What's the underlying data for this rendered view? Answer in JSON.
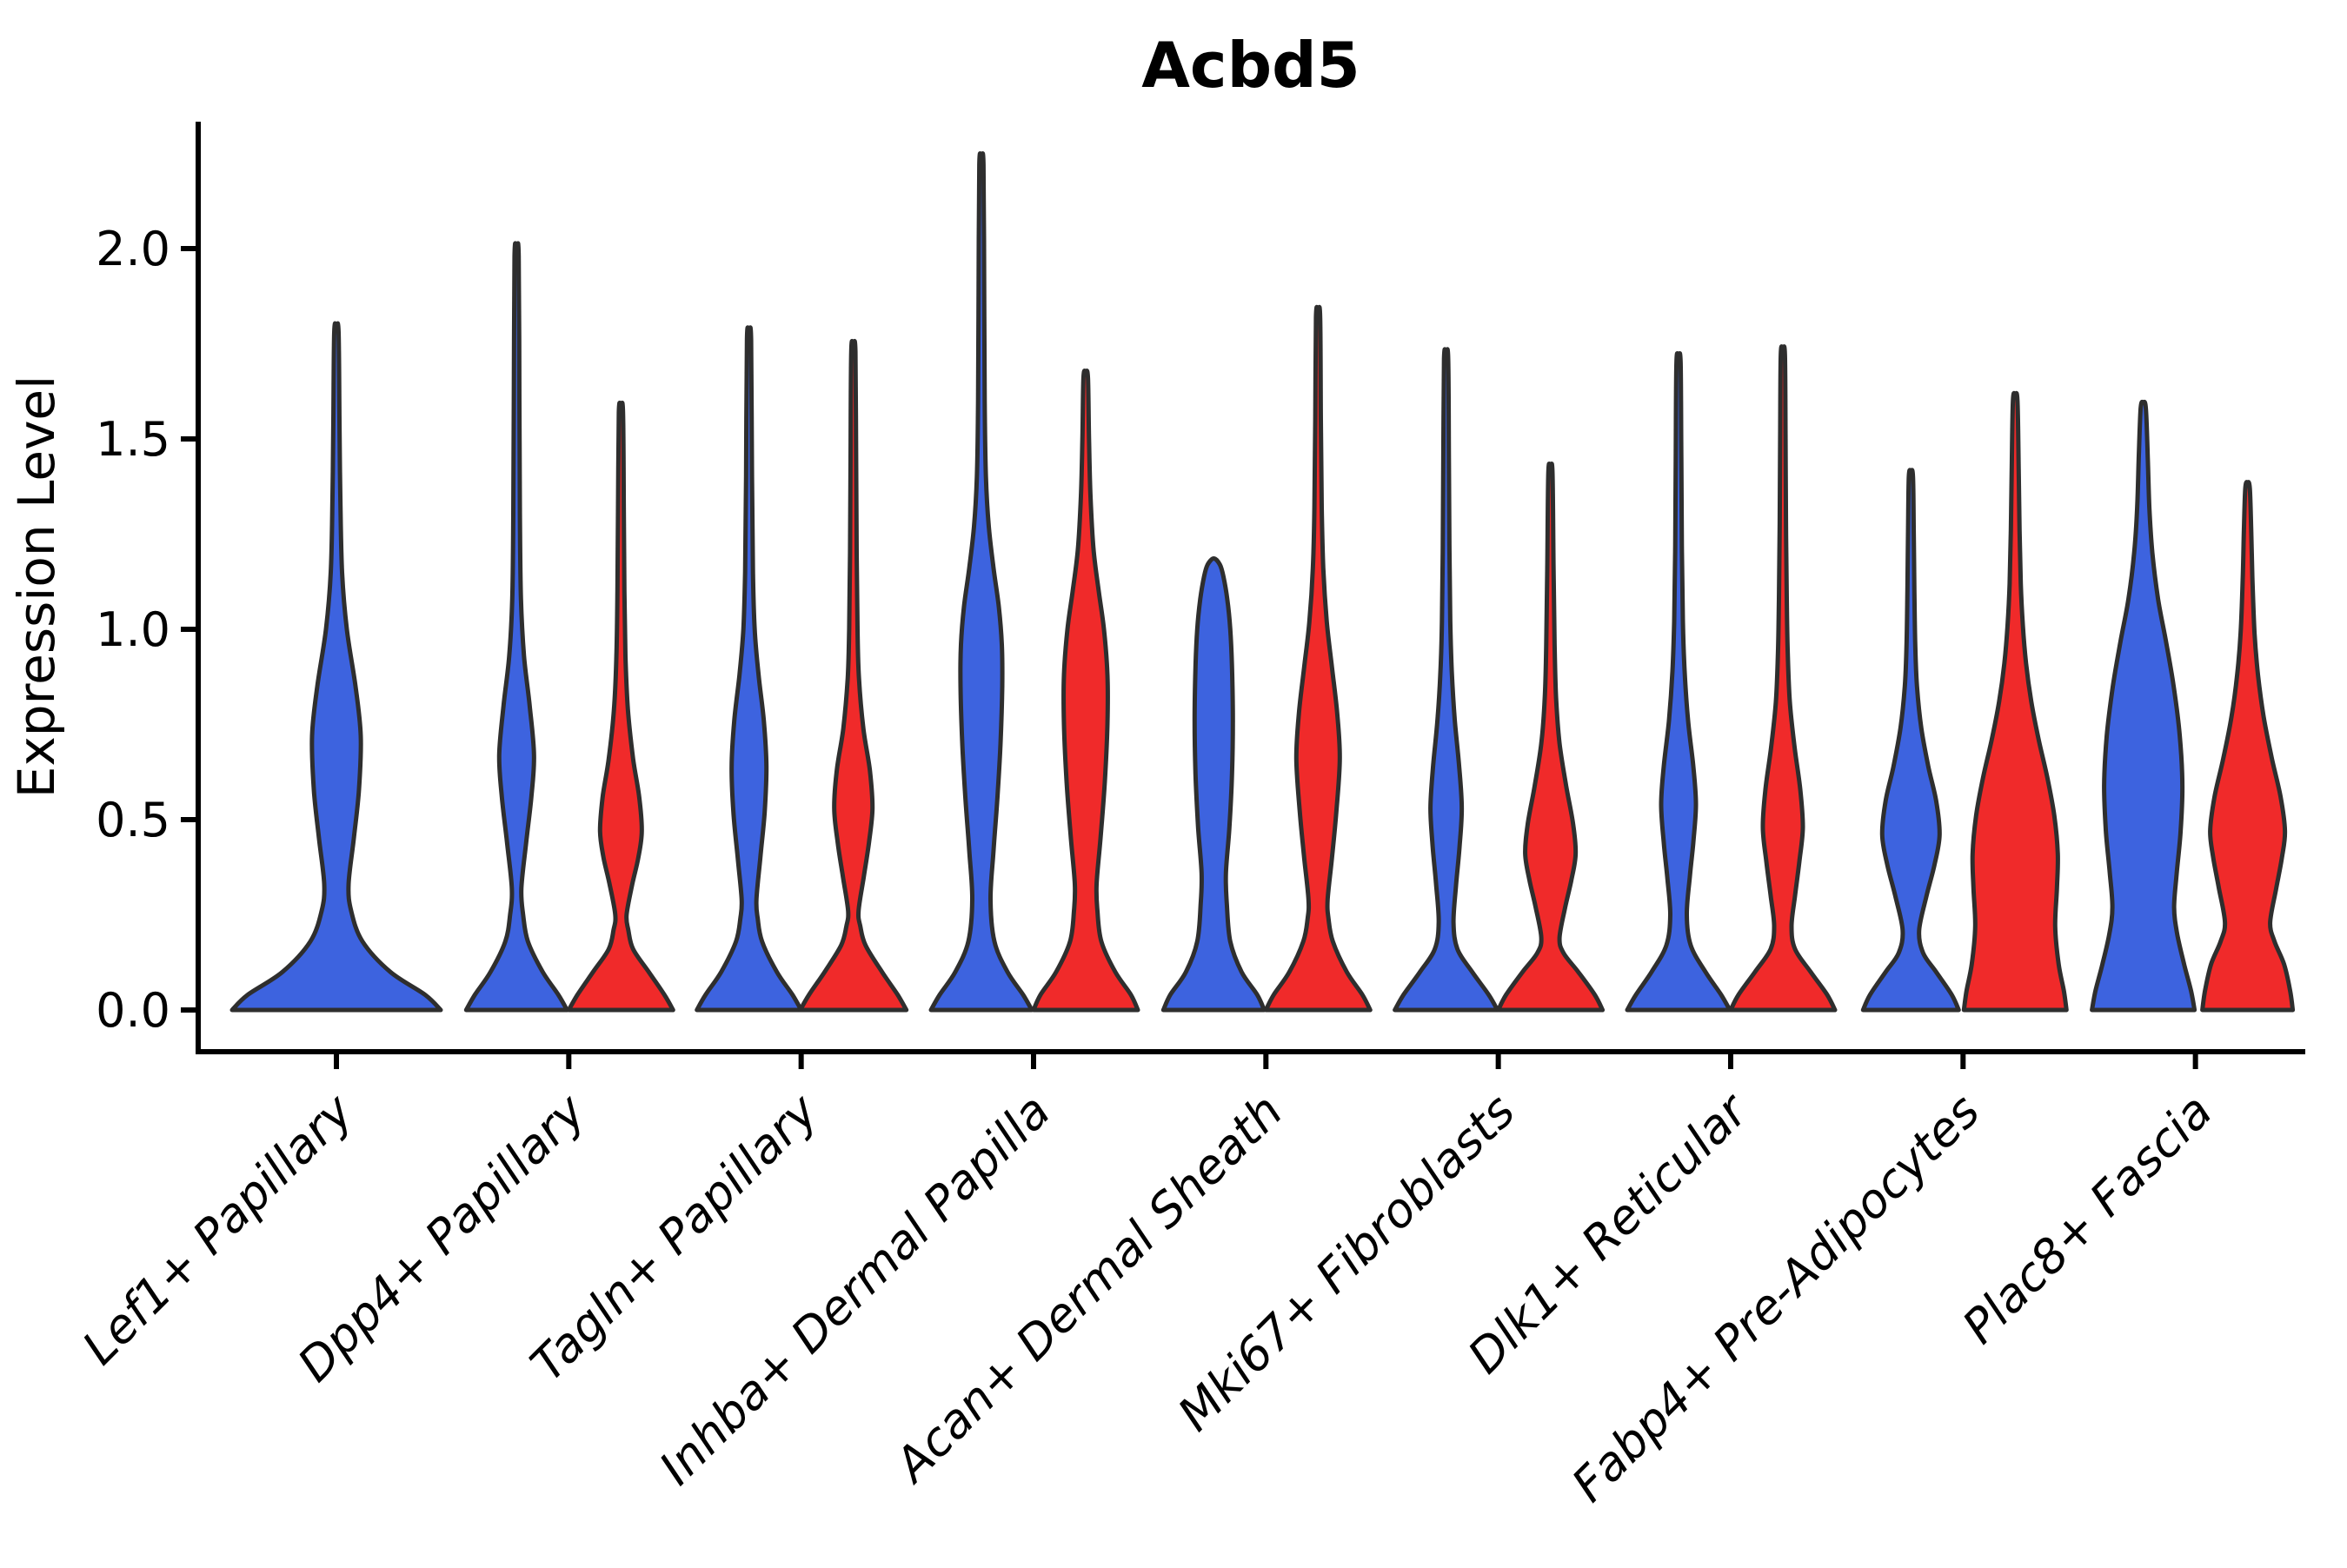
{
  "chart_data": {
    "type": "violin",
    "title": "Acbd5",
    "ylabel": "Expression Level",
    "xlabel": "",
    "grid": false,
    "legend": "none",
    "ylim": [
      0.0,
      2.34
    ],
    "yticks": [
      {
        "value": 0.0,
        "label": "0.0"
      },
      {
        "value": 0.5,
        "label": "0.5"
      },
      {
        "value": 1.0,
        "label": "1.0"
      },
      {
        "value": 1.5,
        "label": "1.5"
      },
      {
        "value": 2.0,
        "label": "2.0"
      }
    ],
    "categories": [
      "Lef1+ Papillary",
      "Dpp4+ Papillary",
      "Tagln+ Papillary",
      "Inhba+ Dermal Papilla",
      "Acan+ Dermal Sheath",
      "Mki67+ Fibroblasts",
      "Dlk1+ Reticular",
      "Fabp4+ Pre-Adipocytes",
      "Plac8+ Fascia"
    ],
    "group_colors": {
      "blue": "#3D63DF",
      "red": "#F02A2A"
    },
    "outline_color": "#2E2E2E",
    "axis_color": "#000000",
    "violins": [
      {
        "category": 0,
        "group": "blue",
        "span": "full",
        "max": 1.78,
        "profile": [
          [
            0,
            120
          ],
          [
            0.04,
            102
          ],
          [
            0.1,
            62
          ],
          [
            0.18,
            30
          ],
          [
            0.26,
            17
          ],
          [
            0.33,
            14
          ],
          [
            0.45,
            20
          ],
          [
            0.58,
            26
          ],
          [
            0.72,
            28
          ],
          [
            0.85,
            22
          ],
          [
            1.0,
            12
          ],
          [
            1.15,
            6.5
          ],
          [
            1.35,
            4.5
          ],
          [
            1.55,
            3.5
          ],
          [
            1.78,
            2.5
          ]
        ]
      },
      {
        "category": 1,
        "group": "blue",
        "span": "left",
        "max": 1.98,
        "profile": [
          [
            0,
            58
          ],
          [
            0.04,
            48
          ],
          [
            0.1,
            30
          ],
          [
            0.18,
            13
          ],
          [
            0.25,
            7.5
          ],
          [
            0.32,
            5.5
          ],
          [
            0.44,
            11
          ],
          [
            0.56,
            17
          ],
          [
            0.67,
            20
          ],
          [
            0.8,
            15
          ],
          [
            0.93,
            8.5
          ],
          [
            1.08,
            5
          ],
          [
            1.3,
            3.8
          ],
          [
            1.6,
            3.2
          ],
          [
            1.98,
            2.4
          ]
        ]
      },
      {
        "category": 1,
        "group": "red",
        "span": "right",
        "max": 1.57,
        "profile": [
          [
            0,
            60
          ],
          [
            0.04,
            50
          ],
          [
            0.1,
            32
          ],
          [
            0.16,
            14
          ],
          [
            0.21,
            8.5
          ],
          [
            0.25,
            6.5
          ],
          [
            0.33,
            13
          ],
          [
            0.4,
            20
          ],
          [
            0.47,
            24
          ],
          [
            0.56,
            21
          ],
          [
            0.66,
            14
          ],
          [
            0.79,
            8
          ],
          [
            0.93,
            5.2
          ],
          [
            1.1,
            4
          ],
          [
            1.32,
            3.3
          ],
          [
            1.57,
            2.4
          ]
        ]
      },
      {
        "category": 2,
        "group": "blue",
        "span": "left",
        "max": 1.76,
        "profile": [
          [
            0,
            60
          ],
          [
            0.04,
            50
          ],
          [
            0.1,
            32
          ],
          [
            0.18,
            15
          ],
          [
            0.24,
            10
          ],
          [
            0.29,
            8.5
          ],
          [
            0.4,
            13
          ],
          [
            0.52,
            18
          ],
          [
            0.64,
            20
          ],
          [
            0.76,
            17
          ],
          [
            0.88,
            11
          ],
          [
            1.0,
            6.5
          ],
          [
            1.15,
            4.5
          ],
          [
            1.4,
            3.4
          ],
          [
            1.76,
            2.4
          ]
        ]
      },
      {
        "category": 2,
        "group": "red",
        "span": "right",
        "max": 1.73,
        "profile": [
          [
            0,
            61
          ],
          [
            0.04,
            51
          ],
          [
            0.1,
            33
          ],
          [
            0.17,
            14
          ],
          [
            0.22,
            8
          ],
          [
            0.26,
            6
          ],
          [
            0.35,
            12
          ],
          [
            0.44,
            18
          ],
          [
            0.53,
            22
          ],
          [
            0.63,
            19
          ],
          [
            0.74,
            11.5
          ],
          [
            0.87,
            6.5
          ],
          [
            1.0,
            4.8
          ],
          [
            1.2,
            3.8
          ],
          [
            1.45,
            3.2
          ],
          [
            1.73,
            2.4
          ]
        ]
      },
      {
        "category": 3,
        "group": "blue",
        "span": "left",
        "max": 2.22,
        "profile": [
          [
            0,
            58
          ],
          [
            0.04,
            48
          ],
          [
            0.1,
            30
          ],
          [
            0.18,
            15
          ],
          [
            0.29,
            10.5
          ],
          [
            0.42,
            14
          ],
          [
            0.56,
            18.5
          ],
          [
            0.7,
            22
          ],
          [
            0.85,
            24
          ],
          [
            0.96,
            23.5
          ],
          [
            1.06,
            20
          ],
          [
            1.16,
            14
          ],
          [
            1.27,
            8.5
          ],
          [
            1.4,
            5.2
          ],
          [
            1.6,
            3.8
          ],
          [
            1.9,
            3.2
          ],
          [
            2.22,
            2.4
          ]
        ]
      },
      {
        "category": 3,
        "group": "red",
        "span": "right",
        "max": 1.66,
        "profile": [
          [
            0,
            60
          ],
          [
            0.04,
            52
          ],
          [
            0.1,
            34
          ],
          [
            0.18,
            18
          ],
          [
            0.26,
            13.5
          ],
          [
            0.33,
            12.5
          ],
          [
            0.45,
            17
          ],
          [
            0.6,
            22
          ],
          [
            0.75,
            25
          ],
          [
            0.88,
            25
          ],
          [
            1.0,
            21
          ],
          [
            1.1,
            15
          ],
          [
            1.21,
            9
          ],
          [
            1.35,
            5.5
          ],
          [
            1.5,
            3.8
          ],
          [
            1.66,
            2.6
          ]
        ]
      },
      {
        "category": 4,
        "group": "blue",
        "span": "left",
        "max": 1.17,
        "profile": [
          [
            0,
            58
          ],
          [
            0.04,
            50
          ],
          [
            0.1,
            32
          ],
          [
            0.18,
            19
          ],
          [
            0.28,
            15
          ],
          [
            0.36,
            14
          ],
          [
            0.48,
            18
          ],
          [
            0.62,
            21
          ],
          [
            0.76,
            22
          ],
          [
            0.9,
            21
          ],
          [
            1.0,
            19
          ],
          [
            1.08,
            15.5
          ],
          [
            1.14,
            11
          ],
          [
            1.17,
            7
          ]
        ]
      },
      {
        "category": 4,
        "group": "red",
        "span": "right",
        "max": 1.82,
        "profile": [
          [
            0,
            60
          ],
          [
            0.04,
            51
          ],
          [
            0.1,
            33
          ],
          [
            0.18,
            17
          ],
          [
            0.24,
            12
          ],
          [
            0.29,
            11
          ],
          [
            0.4,
            16
          ],
          [
            0.52,
            21
          ],
          [
            0.66,
            25
          ],
          [
            0.78,
            22
          ],
          [
            0.9,
            16
          ],
          [
            1.02,
            10
          ],
          [
            1.16,
            6
          ],
          [
            1.32,
            4.2
          ],
          [
            1.55,
            3.2
          ],
          [
            1.82,
            2.4
          ]
        ]
      },
      {
        "category": 5,
        "group": "blue",
        "span": "left",
        "max": 1.71,
        "profile": [
          [
            0,
            59
          ],
          [
            0.04,
            49
          ],
          [
            0.1,
            30
          ],
          [
            0.16,
            13
          ],
          [
            0.23,
            8.5
          ],
          [
            0.33,
            11.5
          ],
          [
            0.43,
            15.5
          ],
          [
            0.53,
            18
          ],
          [
            0.64,
            15
          ],
          [
            0.76,
            10
          ],
          [
            0.89,
            6.5
          ],
          [
            1.02,
            4.8
          ],
          [
            1.22,
            3.8
          ],
          [
            1.45,
            3.2
          ],
          [
            1.71,
            2.4
          ]
        ]
      },
      {
        "category": 5,
        "group": "red",
        "span": "right",
        "max": 1.41,
        "profile": [
          [
            0,
            60
          ],
          [
            0.04,
            51
          ],
          [
            0.1,
            32
          ],
          [
            0.15,
            15
          ],
          [
            0.19,
            10.5
          ],
          [
            0.27,
            17
          ],
          [
            0.34,
            24
          ],
          [
            0.41,
            29
          ],
          [
            0.49,
            26
          ],
          [
            0.59,
            18
          ],
          [
            0.7,
            10.5
          ],
          [
            0.82,
            6.5
          ],
          [
            0.96,
            4.8
          ],
          [
            1.16,
            3.6
          ],
          [
            1.41,
            2.4
          ]
        ]
      },
      {
        "category": 6,
        "group": "blue",
        "span": "left",
        "max": 1.7,
        "profile": [
          [
            0,
            59
          ],
          [
            0.04,
            49
          ],
          [
            0.1,
            31
          ],
          [
            0.17,
            14
          ],
          [
            0.25,
            9.5
          ],
          [
            0.35,
            13
          ],
          [
            0.44,
            17
          ],
          [
            0.54,
            20
          ],
          [
            0.64,
            17
          ],
          [
            0.76,
            11
          ],
          [
            0.89,
            7
          ],
          [
            1.02,
            5
          ],
          [
            1.22,
            3.8
          ],
          [
            1.45,
            3.2
          ],
          [
            1.7,
            2.4
          ]
        ]
      },
      {
        "category": 6,
        "group": "red",
        "span": "right",
        "max": 1.72,
        "profile": [
          [
            0,
            60
          ],
          [
            0.04,
            51
          ],
          [
            0.1,
            32
          ],
          [
            0.16,
            14
          ],
          [
            0.22,
            10
          ],
          [
            0.3,
            14
          ],
          [
            0.39,
            19
          ],
          [
            0.48,
            23
          ],
          [
            0.58,
            20
          ],
          [
            0.69,
            13.5
          ],
          [
            0.81,
            8
          ],
          [
            0.94,
            5.6
          ],
          [
            1.08,
            4.5
          ],
          [
            1.28,
            3.6
          ],
          [
            1.5,
            3.1
          ],
          [
            1.72,
            2.4
          ]
        ]
      },
      {
        "category": 7,
        "group": "blue",
        "span": "left",
        "max": 1.4,
        "profile": [
          [
            0,
            55
          ],
          [
            0.04,
            47
          ],
          [
            0.1,
            29
          ],
          [
            0.15,
            14
          ],
          [
            0.21,
            9.5
          ],
          [
            0.3,
            18
          ],
          [
            0.38,
            27
          ],
          [
            0.46,
            33
          ],
          [
            0.55,
            29
          ],
          [
            0.64,
            20
          ],
          [
            0.74,
            12
          ],
          [
            0.85,
            7
          ],
          [
            0.96,
            5
          ],
          [
            1.1,
            4
          ],
          [
            1.25,
            3.3
          ],
          [
            1.4,
            2.4
          ]
        ]
      },
      {
        "category": 7,
        "group": "red",
        "span": "right",
        "max": 1.6,
        "profile": [
          [
            0,
            59
          ],
          [
            0.05,
            56
          ],
          [
            0.12,
            50
          ],
          [
            0.22,
            46
          ],
          [
            0.32,
            48
          ],
          [
            0.41,
            49
          ],
          [
            0.51,
            45
          ],
          [
            0.61,
            37
          ],
          [
            0.71,
            27
          ],
          [
            0.81,
            18.5
          ],
          [
            0.91,
            12.5
          ],
          [
            1.01,
            8.8
          ],
          [
            1.12,
            6.4
          ],
          [
            1.26,
            5
          ],
          [
            1.42,
            4
          ],
          [
            1.6,
            2.6
          ]
        ]
      },
      {
        "category": 8,
        "group": "blue",
        "span": "left",
        "max": 1.58,
        "profile": [
          [
            0,
            59
          ],
          [
            0.05,
            55
          ],
          [
            0.12,
            47
          ],
          [
            0.2,
            39
          ],
          [
            0.27,
            35.5
          ],
          [
            0.36,
            38.5
          ],
          [
            0.47,
            43
          ],
          [
            0.59,
            45
          ],
          [
            0.72,
            42
          ],
          [
            0.85,
            35
          ],
          [
            0.97,
            26
          ],
          [
            1.08,
            17
          ],
          [
            1.2,
            10.5
          ],
          [
            1.32,
            7
          ],
          [
            1.45,
            5.2
          ],
          [
            1.58,
            3
          ]
        ]
      },
      {
        "category": 8,
        "group": "red",
        "span": "right",
        "max": 1.37,
        "profile": [
          [
            0,
            52
          ],
          [
            0.05,
            49
          ],
          [
            0.12,
            42
          ],
          [
            0.18,
            31
          ],
          [
            0.23,
            26
          ],
          [
            0.32,
            33
          ],
          [
            0.4,
            39.5
          ],
          [
            0.47,
            43
          ],
          [
            0.56,
            38
          ],
          [
            0.66,
            28
          ],
          [
            0.77,
            18.5
          ],
          [
            0.88,
            12
          ],
          [
            0.99,
            8
          ],
          [
            1.13,
            5.6
          ],
          [
            1.26,
            4.2
          ],
          [
            1.37,
            2.6
          ]
        ]
      }
    ]
  }
}
